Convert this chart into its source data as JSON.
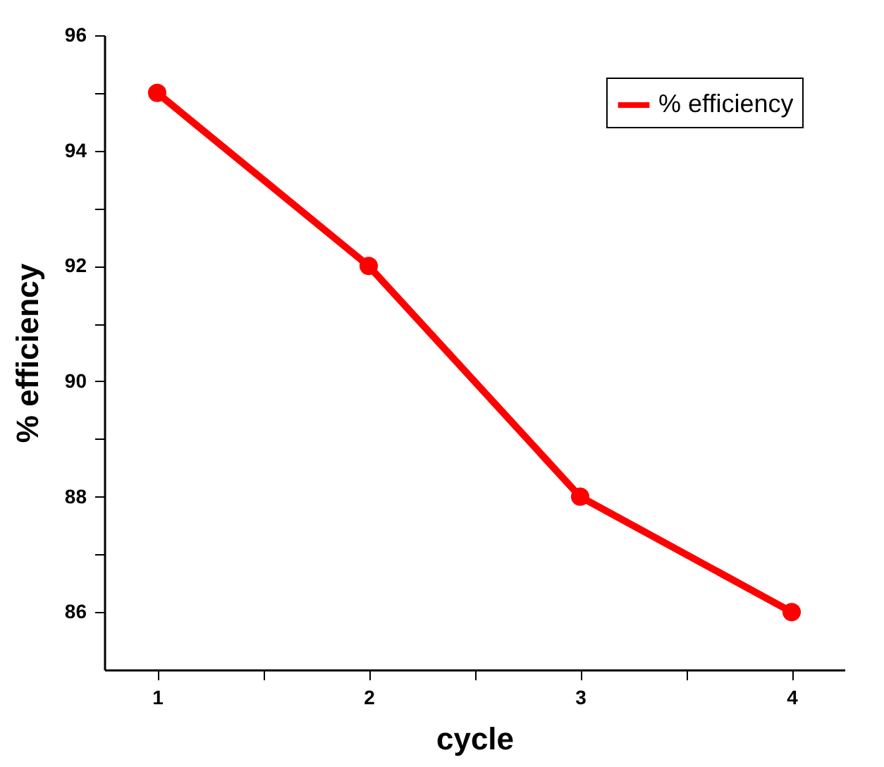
{
  "chart_data": {
    "type": "line",
    "xlabel": "cycle",
    "ylabel": "% efficiency",
    "x": [
      1,
      2,
      3,
      4
    ],
    "series": [
      {
        "name": "% efficiency",
        "color": "#ff0000",
        "values": [
          95,
          92,
          88,
          86
        ]
      }
    ],
    "xlim": [
      0.75,
      4.25
    ],
    "xticks": [
      1,
      {
        "value": 1.5,
        "label": null
      },
      2,
      {
        "value": 2.5,
        "label": null
      },
      3,
      {
        "value": 3.5,
        "label": null
      },
      4
    ],
    "ylim": [
      85,
      96
    ],
    "yticks": [
      86,
      {
        "value": 87,
        "label": null
      },
      88,
      {
        "value": 89,
        "label": null
      },
      90,
      {
        "value": 91,
        "label": null
      },
      92,
      {
        "value": 93,
        "label": null
      },
      94,
      {
        "value": 95,
        "label": null
      },
      96
    ],
    "grid": false,
    "legend": "top right",
    "marker": "circle",
    "line_style": "solid"
  }
}
